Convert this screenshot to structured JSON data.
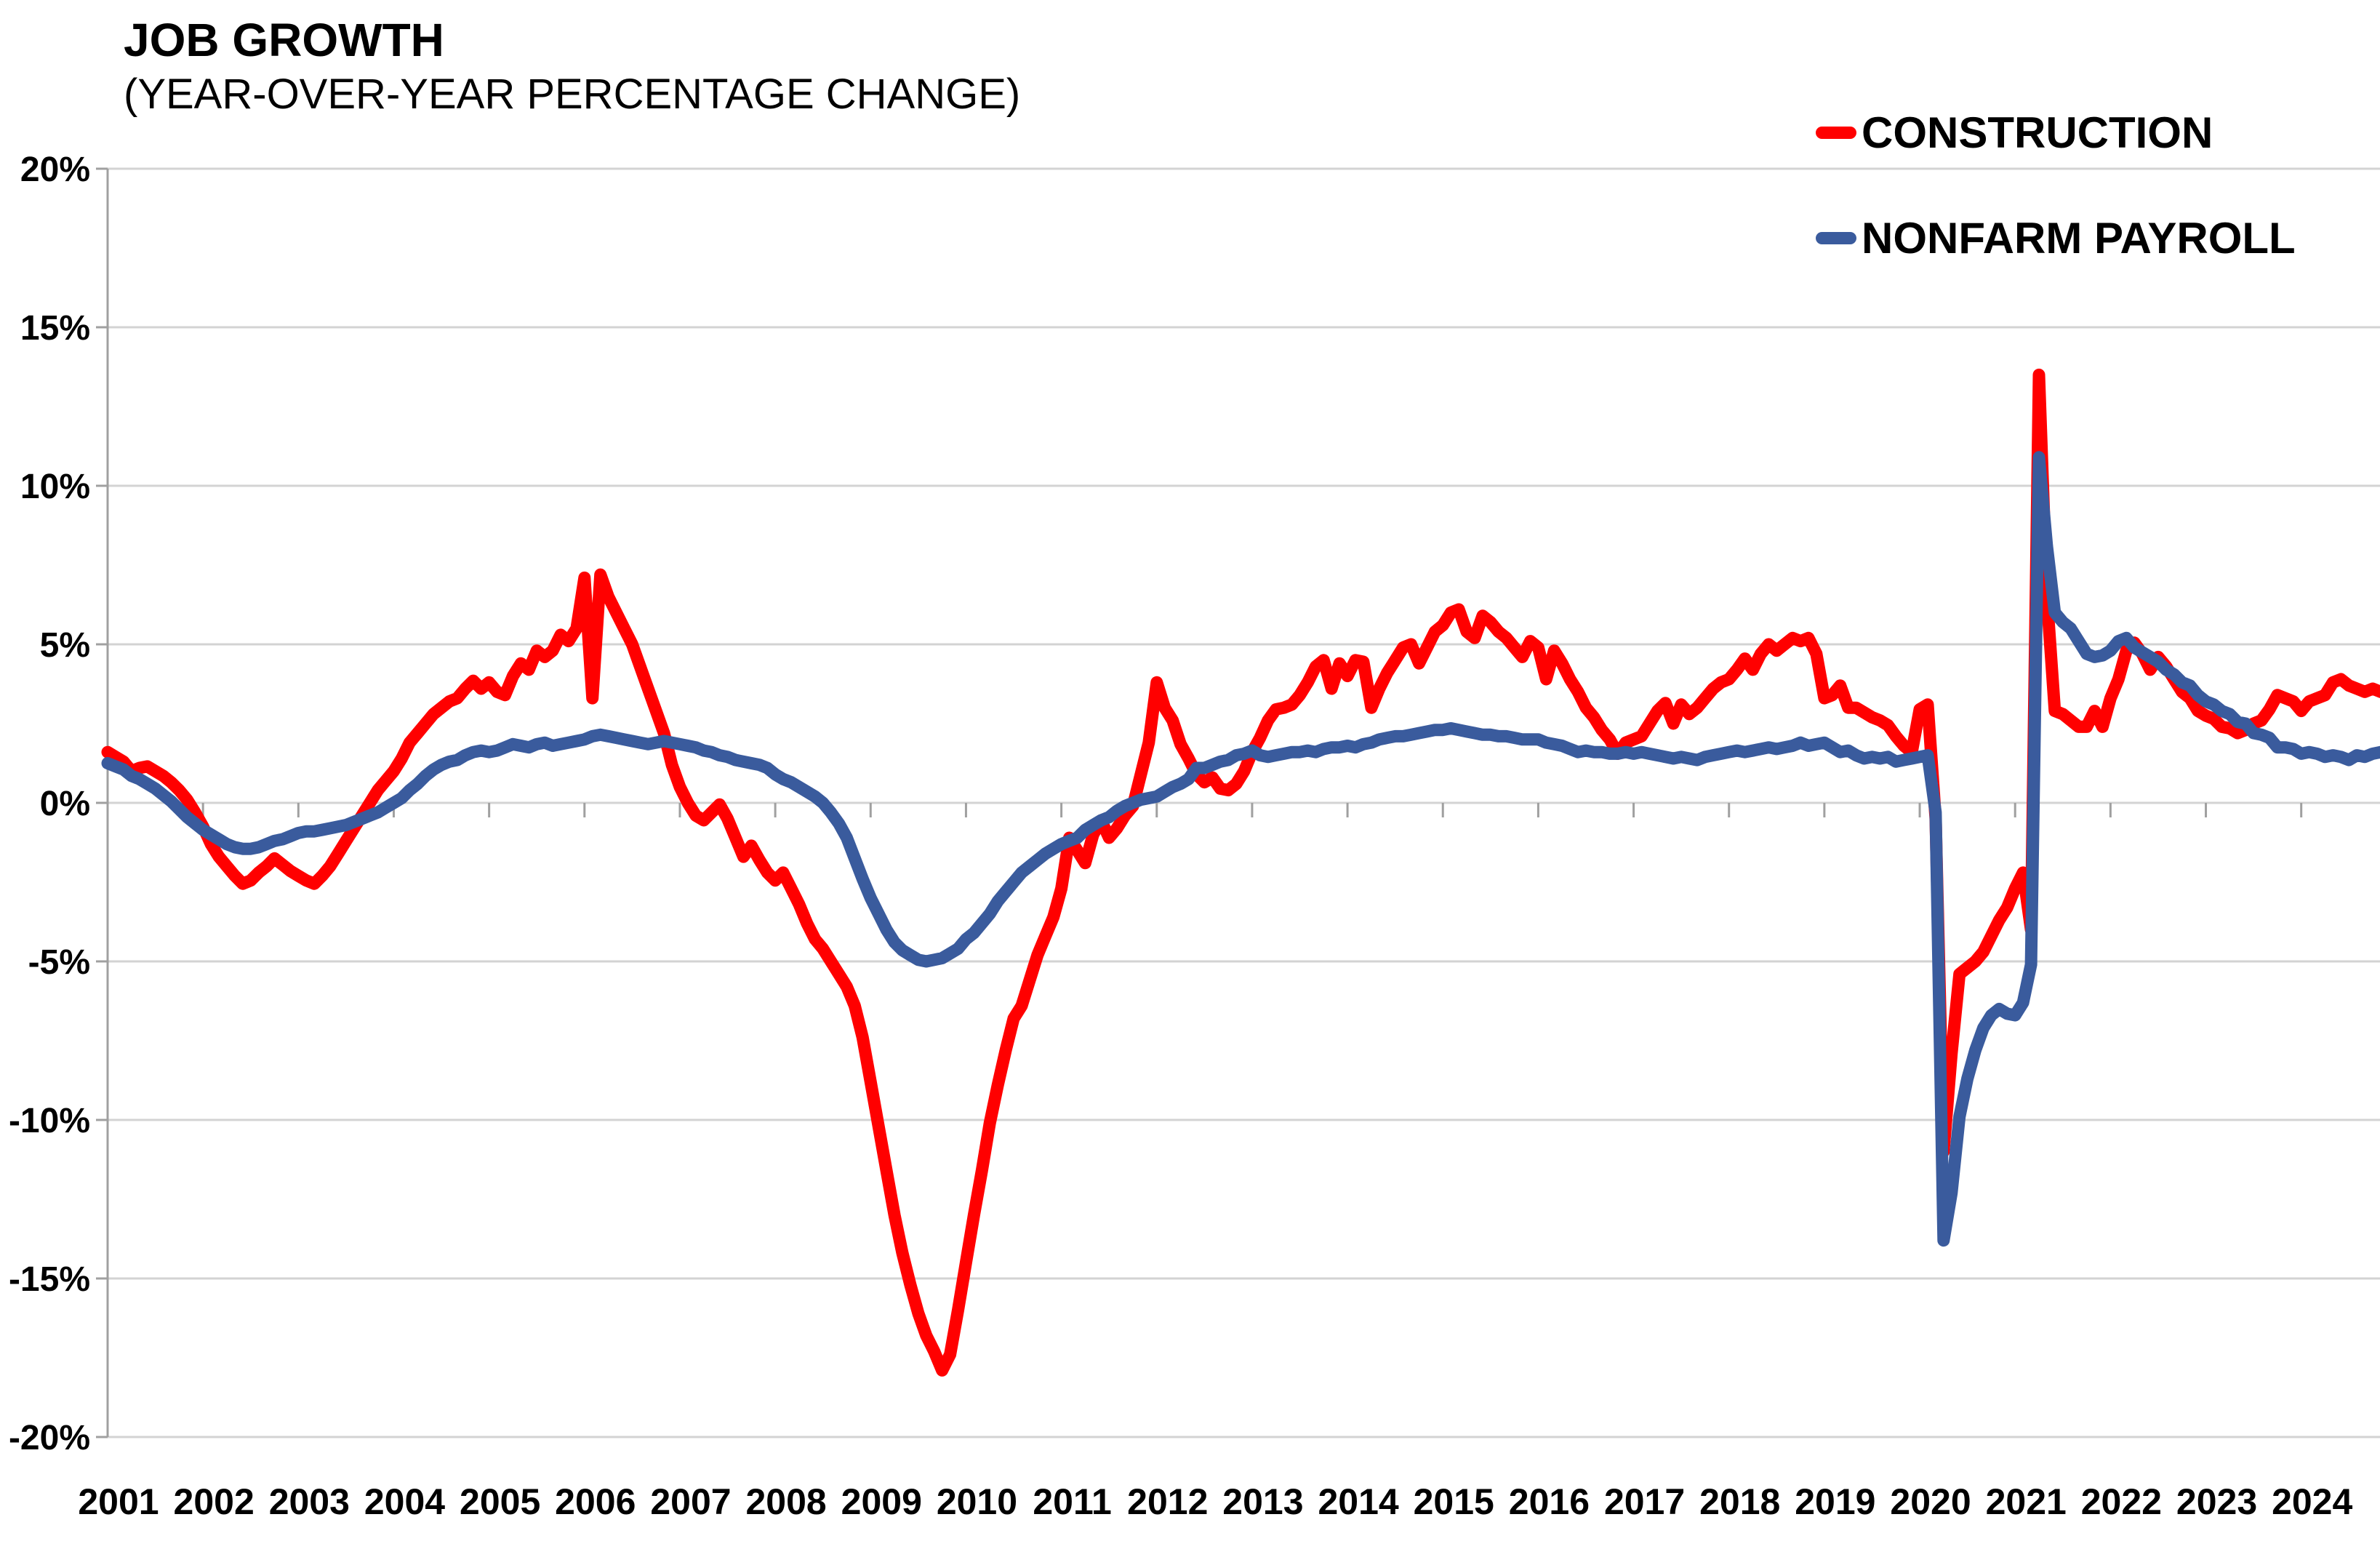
{
  "header": {
    "title": "JOB GROWTH",
    "subtitle": "(YEAR-OVER-YEAR PERCENTAGE CHANGE)"
  },
  "legend": {
    "items": [
      {
        "label": "CONSTRUCTION",
        "color": "#FF0000"
      },
      {
        "label": "NONFARM PAYROLL",
        "color": "#3A5B9D"
      }
    ]
  },
  "chart_data": {
    "type": "line",
    "title": "JOB GROWTH",
    "subtitle": "(YEAR-OVER-YEAR PERCENTAGE CHANGE)",
    "x_start": "2001-01",
    "x_end": "2024-11",
    "x_frequency": "monthly",
    "x_tick_labels": [
      "2001",
      "2002",
      "2003",
      "2004",
      "2005",
      "2006",
      "2007",
      "2008",
      "2009",
      "2010",
      "2011",
      "2012",
      "2013",
      "2014",
      "2015",
      "2016",
      "2017",
      "2018",
      "2019",
      "2020",
      "2021",
      "2022",
      "2023",
      "2024"
    ],
    "ylim": [
      -20,
      20
    ],
    "y_tick_values": [
      20,
      15,
      10,
      5,
      0,
      -5,
      -10,
      -15,
      -20
    ],
    "y_tick_labels": [
      "20%",
      "15%",
      "10%",
      "5%",
      "0%",
      "-5%",
      "-10%",
      "-15%",
      "-20%"
    ],
    "grid": "horizontal",
    "legend_position": "top-right",
    "background": "#FFFFFF",
    "gridline_color": "#D3D3D3",
    "axis_color": "#A0A0A0",
    "series": [
      {
        "name": "CONSTRUCTION",
        "color": "#FF0000",
        "values": [
          1.6,
          1.45,
          1.3,
          1.0,
          1.1,
          1.15,
          1.0,
          0.85,
          0.65,
          0.4,
          0.1,
          -0.3,
          -0.75,
          -1.3,
          -1.7,
          -2.0,
          -2.3,
          -2.55,
          -2.45,
          -2.2,
          -2.0,
          -1.75,
          -1.95,
          -2.15,
          -2.3,
          -2.45,
          -2.55,
          -2.3,
          -2.0,
          -1.6,
          -1.2,
          -0.8,
          -0.4,
          0.0,
          0.4,
          0.7,
          1.0,
          1.4,
          1.9,
          2.2,
          2.5,
          2.8,
          3.0,
          3.2,
          3.3,
          3.6,
          3.85,
          3.6,
          3.8,
          3.5,
          3.4,
          4.0,
          4.4,
          4.2,
          4.8,
          4.6,
          4.8,
          5.3,
          5.1,
          5.5,
          7.1,
          3.3,
          7.2,
          6.5,
          6.0,
          5.5,
          5.0,
          4.3,
          3.6,
          2.9,
          2.2,
          1.2,
          0.5,
          0.0,
          -0.4,
          -0.55,
          -0.3,
          -0.05,
          -0.5,
          -1.1,
          -1.7,
          -1.35,
          -1.8,
          -2.2,
          -2.45,
          -2.2,
          -2.7,
          -3.2,
          -3.8,
          -4.3,
          -4.6,
          -5.0,
          -5.4,
          -5.8,
          -6.4,
          -7.4,
          -8.8,
          -10.2,
          -11.6,
          -13.0,
          -14.2,
          -15.2,
          -16.1,
          -16.8,
          -17.3,
          -17.9,
          -17.4,
          -16.0,
          -14.5,
          -13.0,
          -11.6,
          -10.1,
          -8.9,
          -7.8,
          -6.8,
          -6.4,
          -5.6,
          -4.8,
          -4.2,
          -3.6,
          -2.7,
          -1.1,
          -1.5,
          -1.9,
          -1.0,
          -0.55,
          -1.1,
          -0.8,
          -0.4,
          -0.1,
          0.9,
          1.9,
          3.8,
          3.0,
          2.6,
          1.85,
          1.4,
          0.9,
          0.65,
          0.8,
          0.45,
          0.4,
          0.6,
          1.0,
          1.6,
          2.05,
          2.6,
          2.95,
          3.0,
          3.1,
          3.4,
          3.8,
          4.3,
          4.5,
          3.6,
          4.4,
          4.0,
          4.5,
          4.45,
          3.0,
          3.6,
          4.1,
          4.5,
          4.9,
          5.0,
          4.4,
          4.9,
          5.4,
          5.6,
          6.0,
          6.1,
          5.4,
          5.2,
          5.9,
          5.7,
          5.4,
          5.2,
          4.9,
          4.6,
          5.1,
          4.9,
          3.9,
          4.8,
          4.4,
          3.9,
          3.5,
          3.0,
          2.7,
          2.3,
          2.0,
          1.55,
          1.9,
          2.0,
          2.1,
          2.5,
          2.9,
          3.15,
          2.5,
          3.1,
          2.8,
          3.0,
          3.3,
          3.6,
          3.8,
          3.9,
          4.2,
          4.55,
          4.2,
          4.7,
          5.0,
          4.8,
          5.0,
          5.2,
          5.1,
          5.2,
          4.7,
          3.3,
          3.4,
          3.7,
          3.0,
          3.0,
          2.85,
          2.7,
          2.6,
          2.45,
          2.1,
          1.8,
          1.6,
          2.95,
          3.1,
          -0.5,
          -11.0,
          -7.9,
          -5.4,
          -5.2,
          -5.0,
          -4.7,
          -4.2,
          -3.7,
          -3.3,
          -2.7,
          -2.2,
          -4.0,
          13.5,
          6.5,
          2.9,
          2.8,
          2.6,
          2.4,
          2.4,
          2.9,
          2.4,
          3.3,
          3.9,
          4.8,
          5.05,
          4.7,
          4.2,
          4.6,
          4.3,
          3.9,
          3.5,
          3.3,
          2.9,
          2.75,
          2.65,
          2.4,
          2.35,
          2.2,
          2.3,
          2.5,
          2.6,
          2.95,
          3.4,
          3.3,
          3.2,
          2.9,
          3.2,
          3.3,
          3.4,
          3.8,
          3.9,
          3.7,
          3.6,
          3.5,
          3.6,
          3.5
        ]
      },
      {
        "name": "NONFARM PAYROLL",
        "color": "#3A5B9D",
        "values": [
          1.25,
          1.15,
          1.05,
          0.85,
          0.75,
          0.6,
          0.45,
          0.25,
          0.05,
          -0.2,
          -0.45,
          -0.65,
          -0.85,
          -1.0,
          -1.15,
          -1.3,
          -1.4,
          -1.45,
          -1.45,
          -1.4,
          -1.3,
          -1.2,
          -1.15,
          -1.05,
          -0.95,
          -0.9,
          -0.9,
          -0.85,
          -0.8,
          -0.75,
          -0.7,
          -0.6,
          -0.5,
          -0.4,
          -0.3,
          -0.15,
          0.0,
          0.15,
          0.4,
          0.6,
          0.85,
          1.05,
          1.2,
          1.3,
          1.35,
          1.5,
          1.6,
          1.65,
          1.6,
          1.65,
          1.75,
          1.85,
          1.8,
          1.75,
          1.85,
          1.9,
          1.8,
          1.85,
          1.9,
          1.95,
          2.0,
          2.1,
          2.15,
          2.1,
          2.05,
          2.0,
          1.95,
          1.9,
          1.85,
          1.9,
          1.95,
          1.9,
          1.85,
          1.8,
          1.75,
          1.65,
          1.6,
          1.5,
          1.45,
          1.35,
          1.3,
          1.25,
          1.2,
          1.1,
          0.9,
          0.75,
          0.65,
          0.5,
          0.35,
          0.2,
          0.0,
          -0.3,
          -0.65,
          -1.1,
          -1.75,
          -2.4,
          -3.0,
          -3.5,
          -4.0,
          -4.4,
          -4.65,
          -4.8,
          -4.95,
          -5.0,
          -4.95,
          -4.9,
          -4.75,
          -4.6,
          -4.3,
          -4.1,
          -3.8,
          -3.5,
          -3.1,
          -2.8,
          -2.5,
          -2.2,
          -2.0,
          -1.8,
          -1.6,
          -1.45,
          -1.3,
          -1.2,
          -1.1,
          -0.85,
          -0.7,
          -0.55,
          -0.45,
          -0.25,
          -0.1,
          0.0,
          0.1,
          0.15,
          0.2,
          0.35,
          0.5,
          0.6,
          0.75,
          1.1,
          1.1,
          1.2,
          1.3,
          1.35,
          1.5,
          1.55,
          1.65,
          1.5,
          1.45,
          1.5,
          1.55,
          1.6,
          1.6,
          1.65,
          1.6,
          1.7,
          1.75,
          1.75,
          1.8,
          1.75,
          1.85,
          1.9,
          2.0,
          2.05,
          2.1,
          2.1,
          2.15,
          2.2,
          2.25,
          2.3,
          2.3,
          2.35,
          2.3,
          2.25,
          2.2,
          2.15,
          2.15,
          2.1,
          2.1,
          2.05,
          2.0,
          2.0,
          2.0,
          1.9,
          1.85,
          1.8,
          1.7,
          1.6,
          1.65,
          1.6,
          1.6,
          1.55,
          1.55,
          1.6,
          1.55,
          1.6,
          1.55,
          1.5,
          1.45,
          1.4,
          1.45,
          1.4,
          1.35,
          1.45,
          1.5,
          1.55,
          1.6,
          1.65,
          1.6,
          1.65,
          1.7,
          1.75,
          1.7,
          1.75,
          1.8,
          1.9,
          1.8,
          1.85,
          1.9,
          1.75,
          1.6,
          1.65,
          1.5,
          1.4,
          1.45,
          1.4,
          1.45,
          1.3,
          1.35,
          1.4,
          1.45,
          1.5,
          -0.3,
          -13.8,
          -12.3,
          -9.9,
          -8.7,
          -7.8,
          -7.1,
          -6.7,
          -6.5,
          -6.65,
          -6.7,
          -6.3,
          -5.1,
          10.9,
          8.1,
          6.0,
          5.7,
          5.5,
          5.1,
          4.7,
          4.6,
          4.65,
          4.8,
          5.1,
          5.2,
          4.9,
          4.75,
          4.6,
          4.45,
          4.2,
          4.05,
          3.8,
          3.7,
          3.4,
          3.2,
          3.1,
          2.9,
          2.8,
          2.55,
          2.5,
          2.2,
          2.15,
          2.05,
          1.75,
          1.75,
          1.7,
          1.55,
          1.6,
          1.55,
          1.45,
          1.5,
          1.45,
          1.35,
          1.5,
          1.45,
          1.55,
          1.6
        ]
      }
    ]
  }
}
